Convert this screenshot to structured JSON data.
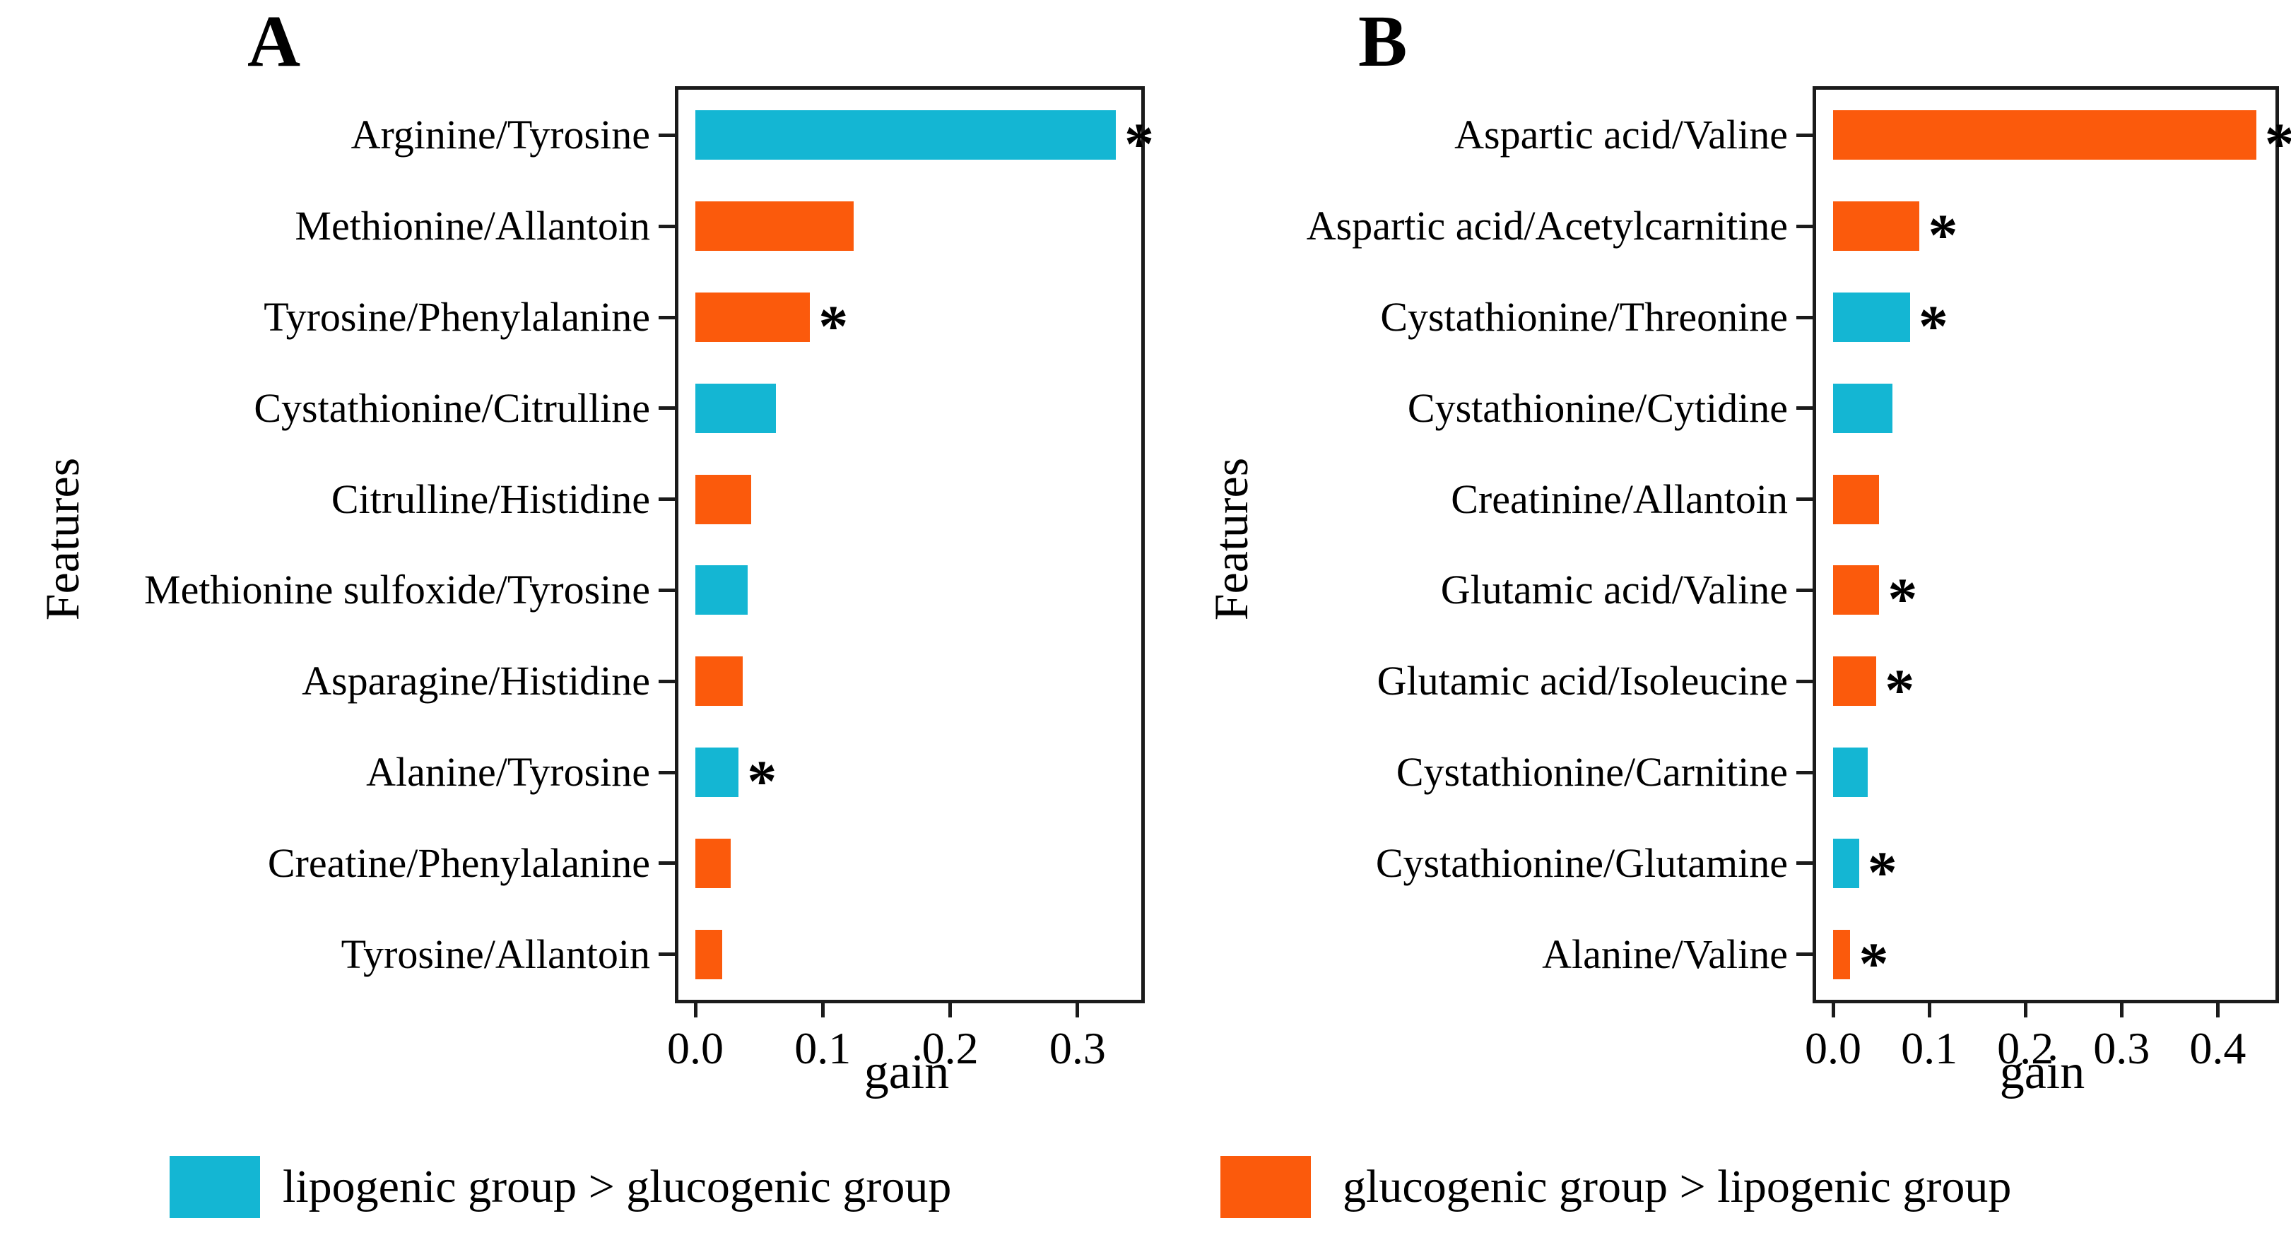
{
  "colors": {
    "lipogenic": "#14b6d3",
    "glucogenic": "#fb5a0c",
    "axis": "#1b1b1b"
  },
  "significance_marker": "*",
  "legend": {
    "items": [
      {
        "key": "lipogenic",
        "label": "lipogenic group > glucogenic group"
      },
      {
        "key": "glucogenic",
        "label": "glucogenic group > lipogenic group"
      }
    ]
  },
  "chart_data": [
    {
      "type": "bar",
      "orientation": "horizontal",
      "panel_label": "A",
      "title": "",
      "xlabel": "gain",
      "ylabel": "Features",
      "xlim": [
        0,
        0.35
      ],
      "grid": false,
      "x_ticks": [
        0,
        0.1,
        0.2,
        0.3
      ],
      "x_tick_labels": [
        "0.0",
        "0.1",
        "0.2",
        "0.3"
      ],
      "categories": [
        "Arginine/Tyrosine",
        "Methionine/Allantoin",
        "Tyrosine/Phenylalanine",
        "Cystathionine/Citrulline",
        "Citrulline/Histidine",
        "Methionine sulfoxide/Tyrosine",
        "Asparagine/Histidine",
        "Alanine/Tyrosine",
        "Creatine/Phenylalanine",
        "Tyrosine/Allantoin"
      ],
      "values": [
        0.33,
        0.124,
        0.09,
        0.063,
        0.044,
        0.041,
        0.037,
        0.034,
        0.028,
        0.021
      ],
      "groups": [
        "lipogenic",
        "glucogenic",
        "glucogenic",
        "lipogenic",
        "glucogenic",
        "lipogenic",
        "glucogenic",
        "lipogenic",
        "glucogenic",
        "glucogenic"
      ],
      "significant": [
        true,
        false,
        true,
        false,
        false,
        false,
        false,
        true,
        false,
        false
      ]
    },
    {
      "type": "bar",
      "orientation": "horizontal",
      "panel_label": "B",
      "title": "",
      "xlabel": "gain",
      "ylabel": "Features",
      "xlim": [
        0,
        0.46
      ],
      "grid": false,
      "x_ticks": [
        0,
        0.1,
        0.2,
        0.3,
        0.4
      ],
      "x_tick_labels": [
        "0.0",
        "0.1",
        "0.2",
        "0.3",
        "0.4"
      ],
      "categories": [
        "Aspartic acid/Valine",
        "Aspartic acid/Acetylcarnitine",
        "Cystathionine/Threonine",
        "Cystathionine/Cytidine",
        "Creatinine/Allantoin",
        "Glutamic acid/Valine",
        "Glutamic acid/Isoleucine",
        "Cystathionine/Carnitine",
        "Cystathionine/Glutamine",
        "Alanine/Valine"
      ],
      "values": [
        0.44,
        0.09,
        0.08,
        0.062,
        0.048,
        0.048,
        0.045,
        0.036,
        0.027,
        0.018
      ],
      "groups": [
        "glucogenic",
        "glucogenic",
        "lipogenic",
        "lipogenic",
        "glucogenic",
        "glucogenic",
        "glucogenic",
        "lipogenic",
        "lipogenic",
        "glucogenic"
      ],
      "significant": [
        true,
        true,
        true,
        false,
        false,
        true,
        true,
        false,
        true,
        true
      ]
    }
  ]
}
